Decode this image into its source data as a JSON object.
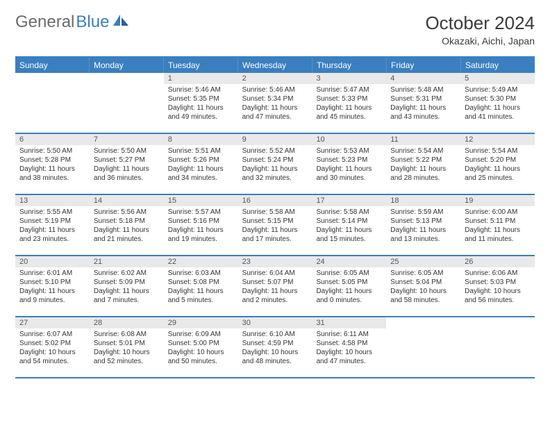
{
  "brand": {
    "part1": "General",
    "part2": "Blue"
  },
  "title": "October 2024",
  "location": "Okazaki, Aichi, Japan",
  "colors": {
    "accent": "#3a7fc0",
    "header_text": "#ffffff",
    "daynum_bg": "#e9e9e9",
    "text": "#333333",
    "logo_gray": "#6b6b6b"
  },
  "day_names": [
    "Sunday",
    "Monday",
    "Tuesday",
    "Wednesday",
    "Thursday",
    "Friday",
    "Saturday"
  ],
  "weeks": [
    [
      {
        "n": "",
        "sr": "",
        "ss": "",
        "dl": ""
      },
      {
        "n": "",
        "sr": "",
        "ss": "",
        "dl": ""
      },
      {
        "n": "1",
        "sr": "Sunrise: 5:46 AM",
        "ss": "Sunset: 5:35 PM",
        "dl": "Daylight: 11 hours and 49 minutes."
      },
      {
        "n": "2",
        "sr": "Sunrise: 5:46 AM",
        "ss": "Sunset: 5:34 PM",
        "dl": "Daylight: 11 hours and 47 minutes."
      },
      {
        "n": "3",
        "sr": "Sunrise: 5:47 AM",
        "ss": "Sunset: 5:33 PM",
        "dl": "Daylight: 11 hours and 45 minutes."
      },
      {
        "n": "4",
        "sr": "Sunrise: 5:48 AM",
        "ss": "Sunset: 5:31 PM",
        "dl": "Daylight: 11 hours and 43 minutes."
      },
      {
        "n": "5",
        "sr": "Sunrise: 5:49 AM",
        "ss": "Sunset: 5:30 PM",
        "dl": "Daylight: 11 hours and 41 minutes."
      }
    ],
    [
      {
        "n": "6",
        "sr": "Sunrise: 5:50 AM",
        "ss": "Sunset: 5:28 PM",
        "dl": "Daylight: 11 hours and 38 minutes."
      },
      {
        "n": "7",
        "sr": "Sunrise: 5:50 AM",
        "ss": "Sunset: 5:27 PM",
        "dl": "Daylight: 11 hours and 36 minutes."
      },
      {
        "n": "8",
        "sr": "Sunrise: 5:51 AM",
        "ss": "Sunset: 5:26 PM",
        "dl": "Daylight: 11 hours and 34 minutes."
      },
      {
        "n": "9",
        "sr": "Sunrise: 5:52 AM",
        "ss": "Sunset: 5:24 PM",
        "dl": "Daylight: 11 hours and 32 minutes."
      },
      {
        "n": "10",
        "sr": "Sunrise: 5:53 AM",
        "ss": "Sunset: 5:23 PM",
        "dl": "Daylight: 11 hours and 30 minutes."
      },
      {
        "n": "11",
        "sr": "Sunrise: 5:54 AM",
        "ss": "Sunset: 5:22 PM",
        "dl": "Daylight: 11 hours and 28 minutes."
      },
      {
        "n": "12",
        "sr": "Sunrise: 5:54 AM",
        "ss": "Sunset: 5:20 PM",
        "dl": "Daylight: 11 hours and 25 minutes."
      }
    ],
    [
      {
        "n": "13",
        "sr": "Sunrise: 5:55 AM",
        "ss": "Sunset: 5:19 PM",
        "dl": "Daylight: 11 hours and 23 minutes."
      },
      {
        "n": "14",
        "sr": "Sunrise: 5:56 AM",
        "ss": "Sunset: 5:18 PM",
        "dl": "Daylight: 11 hours and 21 minutes."
      },
      {
        "n": "15",
        "sr": "Sunrise: 5:57 AM",
        "ss": "Sunset: 5:16 PM",
        "dl": "Daylight: 11 hours and 19 minutes."
      },
      {
        "n": "16",
        "sr": "Sunrise: 5:58 AM",
        "ss": "Sunset: 5:15 PM",
        "dl": "Daylight: 11 hours and 17 minutes."
      },
      {
        "n": "17",
        "sr": "Sunrise: 5:58 AM",
        "ss": "Sunset: 5:14 PM",
        "dl": "Daylight: 11 hours and 15 minutes."
      },
      {
        "n": "18",
        "sr": "Sunrise: 5:59 AM",
        "ss": "Sunset: 5:13 PM",
        "dl": "Daylight: 11 hours and 13 minutes."
      },
      {
        "n": "19",
        "sr": "Sunrise: 6:00 AM",
        "ss": "Sunset: 5:11 PM",
        "dl": "Daylight: 11 hours and 11 minutes."
      }
    ],
    [
      {
        "n": "20",
        "sr": "Sunrise: 6:01 AM",
        "ss": "Sunset: 5:10 PM",
        "dl": "Daylight: 11 hours and 9 minutes."
      },
      {
        "n": "21",
        "sr": "Sunrise: 6:02 AM",
        "ss": "Sunset: 5:09 PM",
        "dl": "Daylight: 11 hours and 7 minutes."
      },
      {
        "n": "22",
        "sr": "Sunrise: 6:03 AM",
        "ss": "Sunset: 5:08 PM",
        "dl": "Daylight: 11 hours and 5 minutes."
      },
      {
        "n": "23",
        "sr": "Sunrise: 6:04 AM",
        "ss": "Sunset: 5:07 PM",
        "dl": "Daylight: 11 hours and 2 minutes."
      },
      {
        "n": "24",
        "sr": "Sunrise: 6:05 AM",
        "ss": "Sunset: 5:05 PM",
        "dl": "Daylight: 11 hours and 0 minutes."
      },
      {
        "n": "25",
        "sr": "Sunrise: 6:05 AM",
        "ss": "Sunset: 5:04 PM",
        "dl": "Daylight: 10 hours and 58 minutes."
      },
      {
        "n": "26",
        "sr": "Sunrise: 6:06 AM",
        "ss": "Sunset: 5:03 PM",
        "dl": "Daylight: 10 hours and 56 minutes."
      }
    ],
    [
      {
        "n": "27",
        "sr": "Sunrise: 6:07 AM",
        "ss": "Sunset: 5:02 PM",
        "dl": "Daylight: 10 hours and 54 minutes."
      },
      {
        "n": "28",
        "sr": "Sunrise: 6:08 AM",
        "ss": "Sunset: 5:01 PM",
        "dl": "Daylight: 10 hours and 52 minutes."
      },
      {
        "n": "29",
        "sr": "Sunrise: 6:09 AM",
        "ss": "Sunset: 5:00 PM",
        "dl": "Daylight: 10 hours and 50 minutes."
      },
      {
        "n": "30",
        "sr": "Sunrise: 6:10 AM",
        "ss": "Sunset: 4:59 PM",
        "dl": "Daylight: 10 hours and 48 minutes."
      },
      {
        "n": "31",
        "sr": "Sunrise: 6:11 AM",
        "ss": "Sunset: 4:58 PM",
        "dl": "Daylight: 10 hours and 47 minutes."
      },
      {
        "n": "",
        "sr": "",
        "ss": "",
        "dl": ""
      },
      {
        "n": "",
        "sr": "",
        "ss": "",
        "dl": ""
      }
    ]
  ]
}
